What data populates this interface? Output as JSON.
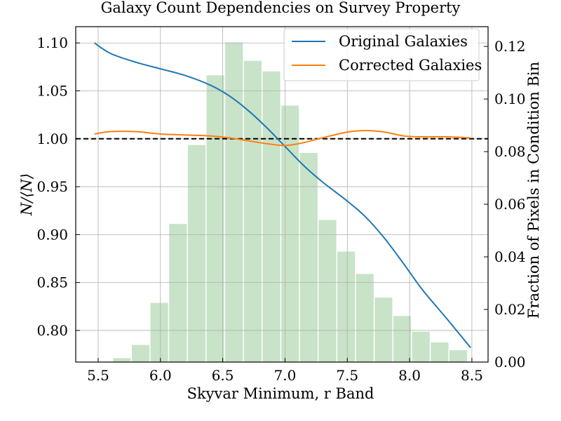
{
  "chart_data": {
    "type": "line",
    "title": "Galaxy Count Dependencies on Survey Property",
    "xlabel": "Skyvar Minimum, r Band",
    "ylabel": "N/⟨N⟩",
    "ylabel_right": "Fraction of Pixels in Condition Bin",
    "xlim": [
      5.32,
      8.63
    ],
    "ylim": [
      0.767,
      1.117
    ],
    "y2lim": [
      0.0,
      0.1275
    ],
    "xticks": [
      5.5,
      6.0,
      6.5,
      7.0,
      7.5,
      8.0,
      8.5
    ],
    "xtick_labels": [
      "5.5",
      "6.0",
      "6.5",
      "7.0",
      "7.5",
      "8.0",
      "8.5"
    ],
    "yticks": [
      0.8,
      0.85,
      0.9,
      0.95,
      1.0,
      1.05,
      1.1
    ],
    "ytick_labels": [
      "0.80",
      "0.85",
      "0.90",
      "0.95",
      "1.00",
      "1.05",
      "1.10"
    ],
    "y2ticks": [
      0.0,
      0.02,
      0.04,
      0.06,
      0.08,
      0.1,
      0.12
    ],
    "y2tick_labels": [
      "0.00",
      "0.02",
      "0.04",
      "0.06",
      "0.08",
      "0.10",
      "0.12"
    ],
    "grid": true,
    "legend_position": "top-right",
    "reference_line": {
      "y": 1.0,
      "style": "dashed",
      "color": "#000000"
    },
    "series": [
      {
        "name": "Original Galaxies",
        "color": "#1f77b4",
        "x": [
          5.47,
          5.6,
          5.8,
          6.0,
          6.2,
          6.4,
          6.55,
          6.7,
          6.85,
          7.0,
          7.15,
          7.3,
          7.5,
          7.65,
          7.8,
          7.95,
          8.1,
          8.3,
          8.49
        ],
        "y": [
          1.1,
          1.089,
          1.08,
          1.073,
          1.066,
          1.056,
          1.045,
          1.03,
          1.012,
          0.992,
          0.972,
          0.955,
          0.935,
          0.918,
          0.896,
          0.87,
          0.843,
          0.812,
          0.782
        ]
      },
      {
        "name": "Corrected Galaxies",
        "color": "#ff7f0e",
        "x": [
          5.47,
          5.6,
          5.8,
          6.0,
          6.2,
          6.4,
          6.55,
          6.7,
          6.85,
          7.0,
          7.15,
          7.3,
          7.5,
          7.65,
          7.8,
          7.95,
          8.1,
          8.3,
          8.49
        ],
        "y": [
          1.005,
          1.0075,
          1.0075,
          1.005,
          1.004,
          1.003,
          1.001,
          0.998,
          0.995,
          0.993,
          0.996,
          1.001,
          1.007,
          1.0085,
          1.007,
          1.003,
          1.002,
          1.002,
          1.001
        ]
      }
    ],
    "histogram": {
      "color": "#c8e3c8",
      "bin_width": 0.15,
      "bin_starts": [
        5.47,
        5.62,
        5.77,
        5.92,
        6.07,
        6.22,
        6.37,
        6.52,
        6.67,
        6.82,
        6.97,
        7.12,
        7.27,
        7.42,
        7.57,
        7.72,
        7.87,
        8.02,
        8.17,
        8.32
      ],
      "fractions": [
        0.0,
        0.0015,
        0.0065,
        0.0225,
        0.0525,
        0.0825,
        0.109,
        0.1215,
        0.1145,
        0.1105,
        0.0975,
        0.0795,
        0.054,
        0.042,
        0.0335,
        0.0245,
        0.0175,
        0.0115,
        0.0075,
        0.0045
      ]
    }
  }
}
